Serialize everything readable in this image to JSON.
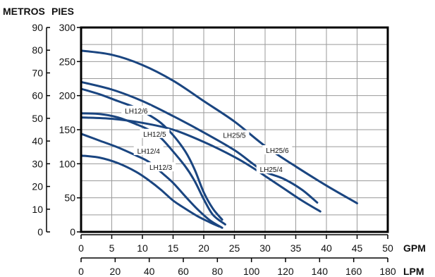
{
  "chart_data": {
    "type": "line",
    "units": {
      "metros": "METROS",
      "pies": "PIES",
      "gpm": "GPM",
      "lpm": "LPM"
    },
    "axes": {
      "gpm": {
        "range": [
          0,
          50
        ],
        "ticks": [
          "0",
          "5",
          "10",
          "15",
          "20",
          "25",
          "30",
          "35",
          "40",
          "45",
          "50"
        ]
      },
      "lpm": {
        "range": [
          0,
          180
        ],
        "ticks": [
          "0",
          "20",
          "40",
          "60",
          "80",
          "100",
          "120",
          "140",
          "160",
          "180"
        ]
      },
      "pies": {
        "range": [
          0,
          300
        ],
        "ticks": [
          "0",
          "50",
          "100",
          "150",
          "200",
          "250",
          "300"
        ]
      },
      "metros": {
        "range": [
          0,
          90
        ],
        "ticks": [
          "0",
          "10",
          "20",
          "30",
          "40",
          "50",
          "60",
          "70",
          "80",
          "90"
        ]
      }
    },
    "grid": true,
    "line_color": "#1a4580",
    "series": [
      {
        "name": "LH12/3",
        "label_at": [
          13,
          95
        ],
        "x": [
          0,
          3,
          6,
          9,
          11,
          13,
          15,
          17,
          19,
          21,
          22.5
        ],
        "y": [
          112,
          109,
          101,
          88,
          76,
          62,
          46,
          34,
          23,
          14,
          8
        ]
      },
      {
        "name": "LH12/4",
        "label_at": [
          11,
          119
        ],
        "x": [
          0,
          3,
          6,
          9,
          11,
          13,
          15,
          17,
          19,
          21,
          23
        ],
        "y": [
          144,
          134,
          124,
          112,
          103,
          88,
          72,
          52,
          33,
          17,
          6
        ]
      },
      {
        "name": "LH12/5",
        "label_at": [
          12,
          144
        ],
        "x": [
          0,
          3,
          6,
          9,
          11,
          13,
          15,
          17,
          18.5,
          20,
          21.5,
          23.5
        ],
        "y": [
          174,
          173,
          168,
          158,
          150,
          138,
          118,
          96,
          75,
          48,
          25,
          11
        ]
      },
      {
        "name": "LH12/6",
        "label_at": [
          9,
          178
        ],
        "x": [
          0,
          3,
          6,
          9,
          11,
          13,
          15,
          17,
          18.5,
          20,
          21.5,
          23
        ],
        "y": [
          210,
          202,
          192,
          182,
          172,
          160,
          142,
          118,
          92,
          58,
          34,
          18
        ]
      },
      {
        "name": "LH25/4",
        "label_at": [
          31,
          92
        ],
        "x": [
          0,
          5,
          10,
          15,
          20,
          25,
          28,
          30,
          33,
          36,
          39
        ],
        "y": [
          168,
          166,
          160,
          150,
          132,
          110,
          94,
          82,
          64,
          46,
          30
        ]
      },
      {
        "name": "LH25/5",
        "label_at": [
          25,
          142
        ],
        "x": [
          0,
          5,
          10,
          15,
          20,
          25,
          28,
          30,
          33,
          36,
          38.5
        ],
        "y": [
          220,
          209,
          192,
          170,
          146,
          120,
          100,
          88,
          78,
          62,
          43
        ]
      },
      {
        "name": "LH25/6",
        "label_at": [
          32,
          120
        ],
        "x": [
          0,
          5,
          10,
          15,
          20,
          25,
          30,
          35,
          40,
          45
        ],
        "y": [
          266,
          260,
          245,
          222,
          192,
          162,
          126,
          96,
          68,
          42
        ]
      }
    ]
  }
}
